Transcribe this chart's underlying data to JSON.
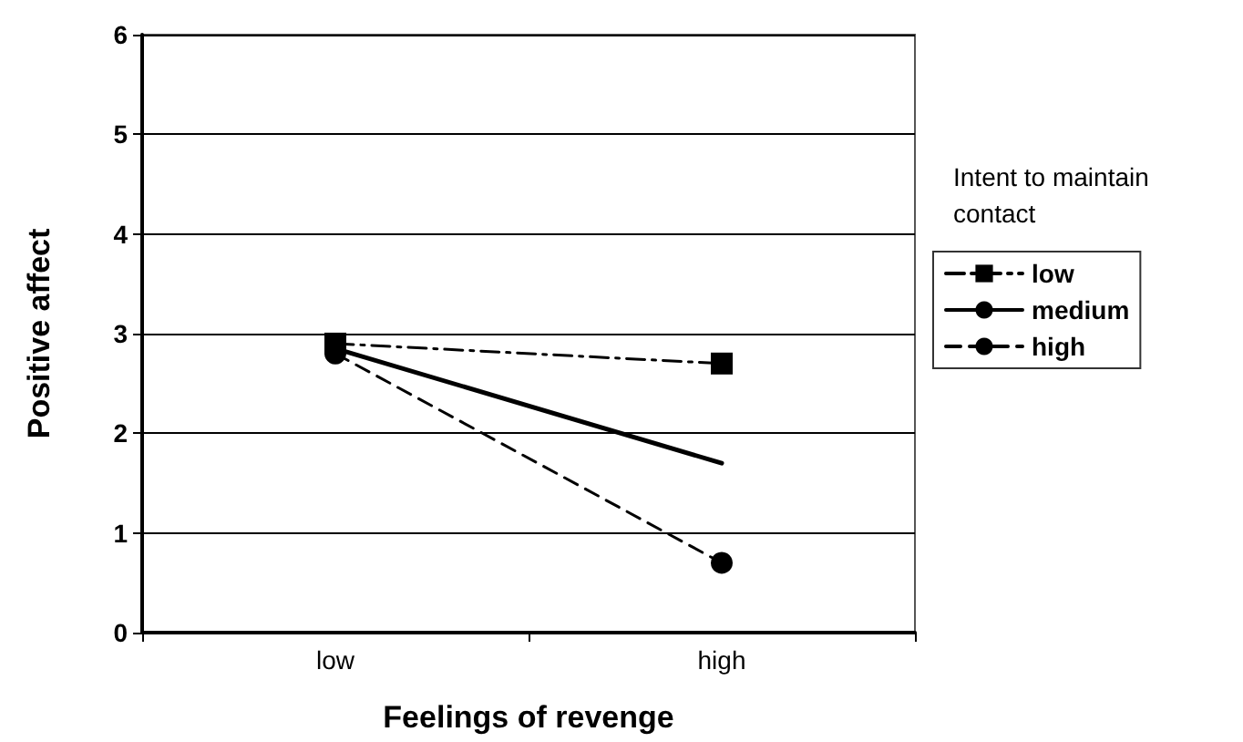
{
  "chart_data": {
    "type": "line",
    "xlabel": "Feelings of revenge",
    "ylabel": "Positive affect",
    "legend_title": "Intent to maintain contact",
    "categories": [
      "low",
      "high"
    ],
    "series": [
      {
        "name": "low",
        "color": "#000000",
        "values": [
          2.9,
          2.7
        ],
        "marker": "square",
        "line_style": "dashdot"
      },
      {
        "name": "medium",
        "color": "#000000",
        "values": [
          2.85,
          1.7
        ],
        "marker": "none",
        "line_style": "solid"
      },
      {
        "name": "high",
        "color": "#000000",
        "values": [
          2.8,
          0.7
        ],
        "marker": "circle",
        "line_style": "dashed"
      }
    ],
    "ylim": [
      0,
      6
    ],
    "yticks": [
      0,
      1,
      2,
      3,
      4,
      5,
      6
    ],
    "grid": "y",
    "legend": "right"
  }
}
